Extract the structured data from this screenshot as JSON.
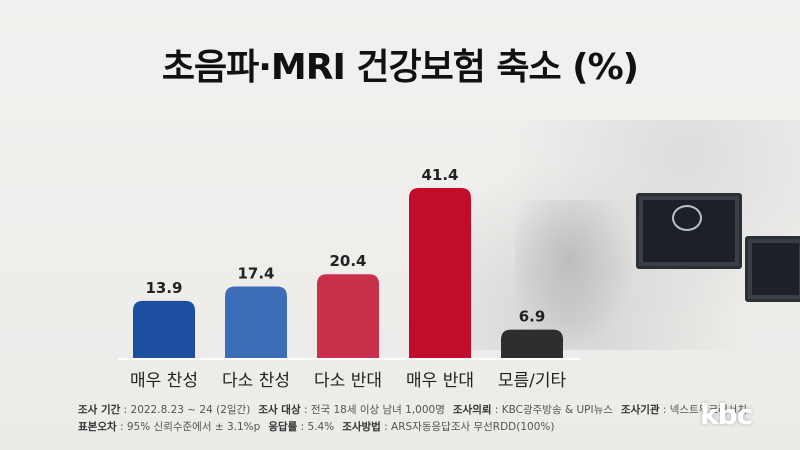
{
  "title": "초음파·MRI 건강보험 축소 (%)",
  "chart_data": {
    "type": "bar",
    "title": "초음파·MRI 건강보험 축소 (%)",
    "categories": [
      "매우 찬성",
      "다소 찬성",
      "다소 반대",
      "매우 반대",
      "모름/기타"
    ],
    "values": [
      13.9,
      17.4,
      20.4,
      41.4,
      6.9
    ],
    "colors": [
      "#1c4fa0",
      "#3b6db8",
      "#c9304a",
      "#c20c2c",
      "#2e2e2e"
    ],
    "ylim": [
      0,
      45
    ],
    "grid": false,
    "legend": "none"
  },
  "footer": {
    "line1": [
      {
        "label": "조사 기간",
        "value": "2022.8.23 ~ 24 (2일간)"
      },
      {
        "label": "조사 대상",
        "value": "전국 18세 이상 남녀 1,000명"
      },
      {
        "label": "조사의뢰",
        "value": "KBC광주방송 & UPI뉴스"
      },
      {
        "label": "조사기관",
        "value": "넥스트위크리서치"
      }
    ],
    "line2": [
      {
        "label": "표본오차",
        "value": "95% 신뢰수준에서 ± 3.1%p"
      },
      {
        "label": "응답률",
        "value": "5.4%"
      },
      {
        "label": "조사방법",
        "value": "ARS자동응답조사 무선RDD(100%)"
      }
    ]
  },
  "logo": "kbc"
}
